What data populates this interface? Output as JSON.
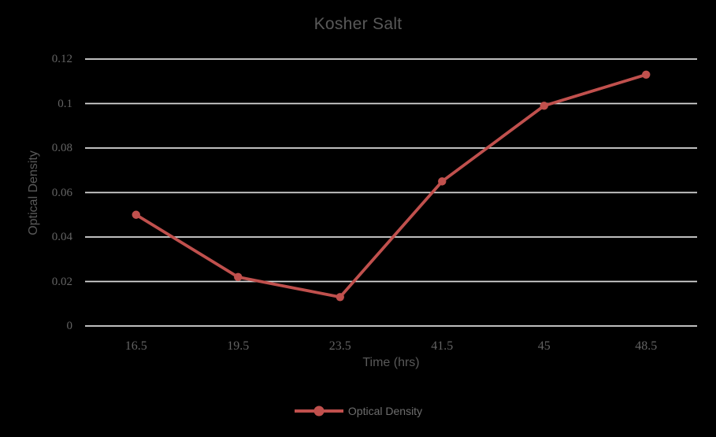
{
  "chart_data": {
    "type": "line",
    "title": "Kosher Salt",
    "xlabel": "Time (hrs)",
    "ylabel": "Optical Density",
    "categories": [
      "16.5",
      "19.5",
      "23.5",
      "41.5",
      "45",
      "48.5"
    ],
    "series": [
      {
        "name": "Optical Density",
        "values": [
          0.05,
          0.022,
          0.013,
          0.065,
          0.099,
          0.113
        ],
        "color": "#C0504D",
        "marker": "circle"
      }
    ],
    "ylim": [
      0,
      0.12
    ],
    "y_ticks": [
      0,
      0.02,
      0.04,
      0.06,
      0.08,
      0.1,
      0.12
    ],
    "y_tick_labels": [
      "0",
      "0.02",
      "0.04",
      "0.06",
      "0.08",
      "0.1",
      "0.12"
    ],
    "grid": "horizontal",
    "legend_position": "bottom-center",
    "colors": {
      "background": "#000000",
      "gridline": "#D9D9D9",
      "title_text": "#595959",
      "tick_text": "#636363",
      "legend_text": "#6e6e6e",
      "series_line": "#C0504D"
    }
  }
}
